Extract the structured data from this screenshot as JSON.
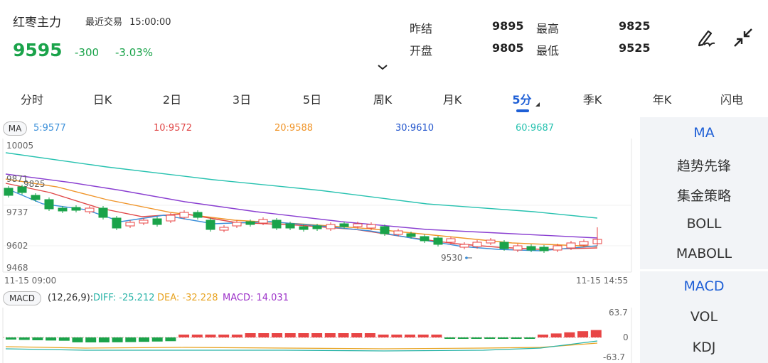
{
  "header": {
    "title": "红枣主力",
    "recent_label": "最近交易",
    "recent_time": "15:00:00",
    "price": "9595",
    "change": "-300",
    "change_pct": "-3.03%",
    "quote": {
      "prev_settle_label": "昨结",
      "prev_settle": "9895",
      "high_label": "最高",
      "high": "9825",
      "open_label": "开盘",
      "open": "9805",
      "low_label": "最低",
      "low": "9525"
    },
    "icons": [
      "draw-pen-icon",
      "collapse-arrows-icon",
      "chevron-down-icon"
    ]
  },
  "tabs": [
    "分时",
    "日K",
    "2日",
    "3日",
    "5日",
    "周K",
    "月K",
    "5分",
    "季K",
    "年K",
    "闪电"
  ],
  "active_tab": "5分",
  "ma": {
    "badge": "MA",
    "ma5": "5:9577",
    "ma10": "10:9572",
    "ma20": "20:9588",
    "ma30": "30:9610",
    "ma60": "60:9687"
  },
  "price_axis": {
    "labels": [
      "10005",
      "9871",
      "9825",
      "9737",
      "9602",
      "9468"
    ],
    "low_marker": "9530",
    "start_time": "11-15 09:00",
    "end_time": "11-15 14:55"
  },
  "macd": {
    "badge": "MACD",
    "params": "(12,26,9):",
    "diff": "DIFF: -25.212",
    "dea": "DEA: -32.228",
    "macd": "MACD: 14.031",
    "axis_top": "63.7",
    "axis_zero": "0",
    "axis_bottom": "-63.7"
  },
  "side_menu": {
    "group1": [
      "MA",
      "趋势先锋",
      "集金策略",
      "BOLL",
      "MABOLL"
    ],
    "group2": [
      "MACD",
      "VOL",
      "KDJ"
    ]
  },
  "colors": {
    "up": "#e84545",
    "down": "#1aa34a",
    "accent": "#1e5fd6",
    "ma5": "#3b8fd9",
    "ma10": "#e04848",
    "ma20": "#f0952a",
    "ma30": "#2255cc",
    "ma60": "#28c2b0"
  }
}
